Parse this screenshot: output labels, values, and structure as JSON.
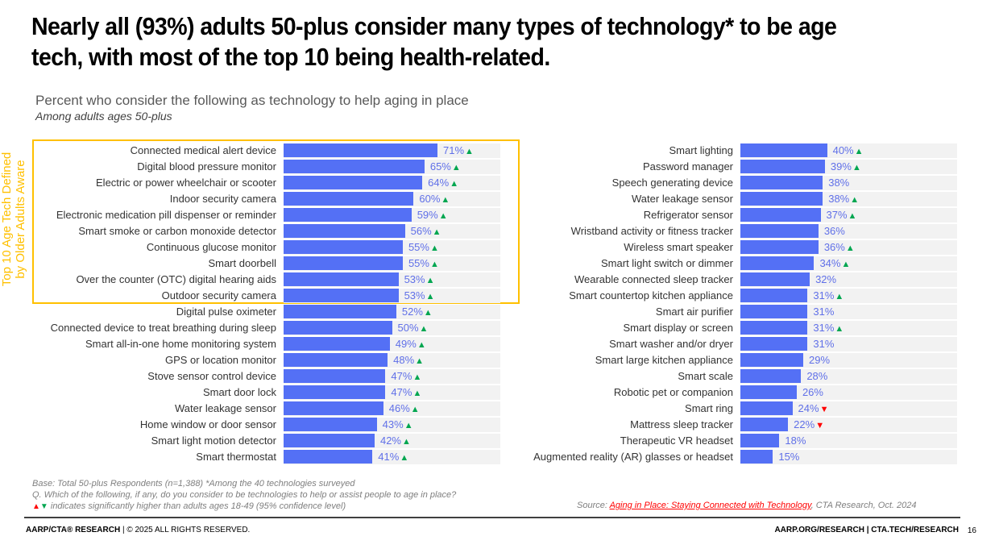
{
  "slide": {
    "title": "Nearly all (93%) adults 50-plus consider many types of technology* to be age tech, with most of the top 10 being health-related.",
    "subtitle": "Percent who consider the following as technology to help aging in place",
    "subtitle2": "Among adults ages 50-plus",
    "top10_label_line1": "Top 10 Age Tech Defined",
    "top10_label_line2": "by Older Adults Aware",
    "footnote_base": "Base: Total 50-plus Respondents (n=1,388) *Among the 40 technologies surveyed",
    "footnote_question": "Q. Which of the following, if any, do you consider to be technologies to help or assist people to age in place?",
    "footnote_legend_up": "▲",
    "footnote_legend_down": "▼",
    "footnote_legend_text": "indicates significantly higher than adults ages 18-49 (95% confidence level)",
    "source_prefix": "Source: ",
    "source_link": "Aging in Place: Staying Connected with Technology",
    "source_suffix": ", CTA Research, Oct. 2024",
    "footer_left_bold": "AARP/CTA® RESEARCH",
    "footer_left_rest": " | © 2025 ALL RIGHTS RESERVED.",
    "footer_right": "AARP.ORG/RESEARCH | CTA.TECH/RESEARCH",
    "page_number": "16",
    "colors": {
      "bar": "#5470f5",
      "track": "#f2f2f2",
      "value_text": "#6070e8",
      "sig_up": "#00a650",
      "sig_down": "#ff0000",
      "highlight_box": "#FFC000"
    }
  },
  "chart_data": {
    "type": "bar",
    "orientation": "horizontal",
    "title": "Percent who consider the following as technology to help aging in place",
    "subtitle": "Among adults ages 50-plus",
    "xlim": [
      0,
      100
    ],
    "unit": "%",
    "highlight": {
      "label": "Top 10 Age Tech Defined by Older Adults Aware",
      "panel": 0,
      "rows": 10
    },
    "panels": [
      {
        "categories": [
          "Connected medical alert device",
          "Digital blood pressure monitor",
          "Electric or power wheelchair or scooter",
          "Indoor security camera",
          "Electronic medication pill dispenser or reminder",
          "Smart smoke or carbon monoxide detector",
          "Continuous glucose monitor",
          "Smart doorbell",
          "Over the counter (OTC) digital hearing aids",
          "Outdoor security camera",
          "Digital pulse oximeter",
          "Connected device to treat breathing during sleep",
          "Smart all-in-one home monitoring system",
          "GPS or location monitor",
          "Stove sensor control device",
          "Smart door lock",
          "Water leakage sensor",
          "Home window or door sensor",
          "Smart light motion detector",
          "Smart thermostat"
        ],
        "values": [
          71,
          65,
          64,
          60,
          59,
          56,
          55,
          55,
          53,
          53,
          52,
          50,
          49,
          48,
          47,
          47,
          46,
          43,
          42,
          41
        ],
        "significance": [
          "up",
          "up",
          "up",
          "up",
          "up",
          "up",
          "up",
          "up",
          "up",
          "up",
          "up",
          "up",
          "up",
          "up",
          "up",
          "up",
          "up",
          "up",
          "up",
          "up"
        ]
      },
      {
        "categories": [
          "Smart lighting",
          "Password manager",
          "Speech generating device",
          "Water leakage sensor",
          "Refrigerator sensor",
          "Wristband activity or fitness tracker",
          "Wireless smart speaker",
          "Smart light switch or dimmer",
          "Wearable connected sleep tracker",
          "Smart countertop kitchen appliance",
          "Smart air purifier",
          "Smart display or screen",
          "Smart washer and/or dryer",
          "Smart large kitchen appliance",
          "Smart scale",
          "Robotic pet or companion",
          "Smart ring",
          "Mattress sleep tracker",
          "Therapeutic VR headset",
          "Augmented reality (AR) glasses or headset"
        ],
        "values": [
          40,
          39,
          38,
          38,
          37,
          36,
          36,
          34,
          32,
          31,
          31,
          31,
          31,
          29,
          28,
          26,
          24,
          22,
          18,
          15
        ],
        "significance": [
          "up",
          "up",
          "",
          "up",
          "up",
          "",
          "up",
          "up",
          "",
          "up",
          "",
          "up",
          "",
          "",
          "",
          "",
          "down",
          "down",
          "",
          ""
        ]
      }
    ]
  }
}
